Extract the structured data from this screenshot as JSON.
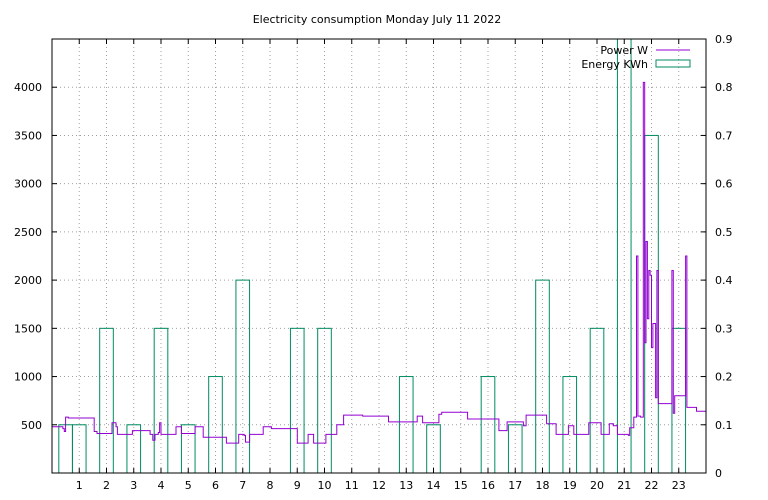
{
  "chart_data": {
    "type": "line",
    "title": "Electricity consumption Monday July 11 2022",
    "xlabel": "",
    "ylabel": "",
    "x_ticks": [
      1,
      2,
      3,
      4,
      5,
      6,
      7,
      8,
      9,
      10,
      11,
      12,
      13,
      14,
      15,
      16,
      17,
      18,
      19,
      20,
      21,
      22,
      23
    ],
    "x_range": [
      0,
      24
    ],
    "y_left_ticks": [
      500,
      1000,
      1500,
      2000,
      2500,
      3000,
      3500,
      4000
    ],
    "y_left_range": [
      0,
      4500
    ],
    "y_right_ticks": [
      "0",
      "0.1",
      "0.2",
      "0.3",
      "0.4",
      "0.5",
      "0.6",
      "0.7",
      "0.8",
      "0.9"
    ],
    "y_right_range": [
      0,
      0.9
    ],
    "grid": true,
    "legend_position": "top-right",
    "series": [
      {
        "name": "Power W",
        "axis": "left",
        "style": "steps",
        "color": "#9400d3",
        "points": [
          [
            0,
            480
          ],
          [
            0.4,
            460
          ],
          [
            0.45,
            430
          ],
          [
            0.5,
            580
          ],
          [
            0.6,
            570
          ],
          [
            1.5,
            570
          ],
          [
            1.55,
            430
          ],
          [
            1.65,
            410
          ],
          [
            2.1,
            410
          ],
          [
            2.2,
            520
          ],
          [
            2.35,
            480
          ],
          [
            2.4,
            400
          ],
          [
            2.9,
            400
          ],
          [
            2.95,
            440
          ],
          [
            3.5,
            440
          ],
          [
            3.6,
            400
          ],
          [
            3.7,
            340
          ],
          [
            3.78,
            400
          ],
          [
            3.9,
            420
          ],
          [
            3.95,
            520
          ],
          [
            4.0,
            400
          ],
          [
            4.5,
            400
          ],
          [
            4.55,
            480
          ],
          [
            4.75,
            410
          ],
          [
            5.2,
            410
          ],
          [
            5.25,
            480
          ],
          [
            5.55,
            370
          ],
          [
            6.35,
            370
          ],
          [
            6.4,
            310
          ],
          [
            6.8,
            310
          ],
          [
            6.85,
            400
          ],
          [
            7.05,
            390
          ],
          [
            7.1,
            320
          ],
          [
            7.25,
            400
          ],
          [
            7.7,
            400
          ],
          [
            7.75,
            480
          ],
          [
            8.05,
            460
          ],
          [
            8.95,
            460
          ],
          [
            9.0,
            310
          ],
          [
            9.35,
            310
          ],
          [
            9.4,
            400
          ],
          [
            9.55,
            400
          ],
          [
            9.6,
            310
          ],
          [
            10.0,
            310
          ],
          [
            10.05,
            400
          ],
          [
            10.45,
            500
          ],
          [
            10.7,
            600
          ],
          [
            11.4,
            590
          ],
          [
            12.3,
            590
          ],
          [
            12.35,
            530
          ],
          [
            13.3,
            530
          ],
          [
            13.4,
            590
          ],
          [
            13.6,
            520
          ],
          [
            14.15,
            520
          ],
          [
            14.2,
            610
          ],
          [
            14.3,
            630
          ],
          [
            15.2,
            630
          ],
          [
            15.25,
            560
          ],
          [
            16.3,
            560
          ],
          [
            16.4,
            440
          ],
          [
            16.7,
            530
          ],
          [
            17.3,
            490
          ],
          [
            17.4,
            600
          ],
          [
            18.1,
            600
          ],
          [
            18.15,
            510
          ],
          [
            18.45,
            510
          ],
          [
            18.5,
            400
          ],
          [
            18.9,
            400
          ],
          [
            18.95,
            490
          ],
          [
            19.15,
            400
          ],
          [
            19.65,
            400
          ],
          [
            19.7,
            520
          ],
          [
            20.1,
            520
          ],
          [
            20.15,
            400
          ],
          [
            20.4,
            400
          ],
          [
            20.45,
            510
          ],
          [
            20.6,
            490
          ],
          [
            20.75,
            400
          ],
          [
            21.15,
            390
          ],
          [
            21.2,
            470
          ],
          [
            21.35,
            580
          ],
          [
            21.45,
            2250
          ],
          [
            21.5,
            590
          ],
          [
            21.6,
            580
          ],
          [
            21.7,
            4050
          ],
          [
            21.75,
            1350
          ],
          [
            21.8,
            2400
          ],
          [
            21.85,
            1600
          ],
          [
            21.9,
            2100
          ],
          [
            21.95,
            2050
          ],
          [
            22.0,
            1300
          ],
          [
            22.05,
            1550
          ],
          [
            22.15,
            780
          ],
          [
            22.2,
            2100
          ],
          [
            22.25,
            720
          ],
          [
            22.7,
            720
          ],
          [
            22.75,
            2100
          ],
          [
            22.8,
            620
          ],
          [
            22.85,
            800
          ],
          [
            23.2,
            800
          ],
          [
            23.25,
            2250
          ],
          [
            23.3,
            680
          ],
          [
            23.6,
            680
          ],
          [
            23.65,
            640
          ],
          [
            24,
            640
          ]
        ]
      },
      {
        "name": "Energy KWh",
        "axis": "right",
        "style": "histogram-boxes",
        "color": "#008b61",
        "bars": [
          {
            "hour": 0.5,
            "value": 0.1
          },
          {
            "hour": 1.0,
            "value": 0.1
          },
          {
            "hour": 2.0,
            "value": 0.3
          },
          {
            "hour": 3.0,
            "value": 0.1
          },
          {
            "hour": 4.0,
            "value": 0.3
          },
          {
            "hour": 5.0,
            "value": 0.1
          },
          {
            "hour": 6.0,
            "value": 0.2
          },
          {
            "hour": 7.0,
            "value": 0.4
          },
          {
            "hour": 9.0,
            "value": 0.3
          },
          {
            "hour": 10.0,
            "value": 0.3
          },
          {
            "hour": 13.0,
            "value": 0.2
          },
          {
            "hour": 14.0,
            "value": 0.1
          },
          {
            "hour": 16.0,
            "value": 0.2
          },
          {
            "hour": 17.0,
            "value": 0.1
          },
          {
            "hour": 18.0,
            "value": 0.4
          },
          {
            "hour": 19.0,
            "value": 0.2
          },
          {
            "hour": 20.0,
            "value": 0.3
          },
          {
            "hour": 21.0,
            "value": 0.9
          },
          {
            "hour": 22.0,
            "value": 0.7
          },
          {
            "hour": 23.0,
            "value": 0.3
          }
        ]
      }
    ]
  }
}
